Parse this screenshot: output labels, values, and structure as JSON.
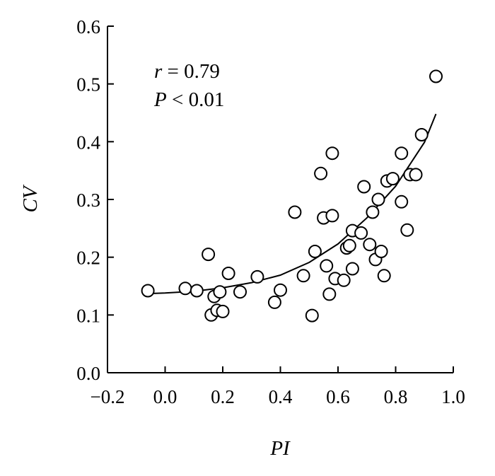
{
  "chart_data": {
    "type": "scatter",
    "xlabel": "PI",
    "ylabel": "CV",
    "xlim": [
      -0.2,
      1.0
    ],
    "ylim": [
      0.0,
      0.6
    ],
    "x_ticks": [
      "−0.2",
      "0.0",
      "0.2",
      "0.4",
      "0.6",
      "0.8",
      "1.0"
    ],
    "x_tick_values": [
      -0.2,
      0.0,
      0.2,
      0.4,
      0.6,
      0.8,
      1.0
    ],
    "y_ticks": [
      "0.0",
      "0.1",
      "0.2",
      "0.3",
      "0.4",
      "0.5",
      "0.6"
    ],
    "y_tick_values": [
      0.0,
      0.1,
      0.2,
      0.3,
      0.4,
      0.5,
      0.6
    ],
    "grid": false,
    "annotation": {
      "r_symbol": "r",
      "r_text": " = 0.79",
      "p_symbol": "P",
      "p_text": " < 0.01"
    },
    "fit_curve": {
      "type": "exponential",
      "x": [
        -0.06,
        0.0,
        0.1,
        0.2,
        0.3,
        0.4,
        0.5,
        0.6,
        0.7,
        0.8,
        0.9,
        0.94
      ],
      "y": [
        0.137,
        0.138,
        0.141,
        0.147,
        0.156,
        0.169,
        0.191,
        0.223,
        0.268,
        0.323,
        0.399,
        0.448
      ]
    },
    "points": [
      {
        "x": -0.06,
        "y": 0.142
      },
      {
        "x": 0.07,
        "y": 0.146
      },
      {
        "x": 0.11,
        "y": 0.142
      },
      {
        "x": 0.15,
        "y": 0.205
      },
      {
        "x": 0.16,
        "y": 0.1
      },
      {
        "x": 0.17,
        "y": 0.132
      },
      {
        "x": 0.18,
        "y": 0.108
      },
      {
        "x": 0.19,
        "y": 0.14
      },
      {
        "x": 0.2,
        "y": 0.106
      },
      {
        "x": 0.22,
        "y": 0.172
      },
      {
        "x": 0.26,
        "y": 0.14
      },
      {
        "x": 0.32,
        "y": 0.166
      },
      {
        "x": 0.38,
        "y": 0.122
      },
      {
        "x": 0.4,
        "y": 0.143
      },
      {
        "x": 0.45,
        "y": 0.278
      },
      {
        "x": 0.48,
        "y": 0.168
      },
      {
        "x": 0.51,
        "y": 0.099
      },
      {
        "x": 0.52,
        "y": 0.21
      },
      {
        "x": 0.54,
        "y": 0.345
      },
      {
        "x": 0.55,
        "y": 0.268
      },
      {
        "x": 0.56,
        "y": 0.185
      },
      {
        "x": 0.57,
        "y": 0.136
      },
      {
        "x": 0.58,
        "y": 0.38
      },
      {
        "x": 0.58,
        "y": 0.272
      },
      {
        "x": 0.59,
        "y": 0.163
      },
      {
        "x": 0.62,
        "y": 0.16
      },
      {
        "x": 0.63,
        "y": 0.216
      },
      {
        "x": 0.64,
        "y": 0.22
      },
      {
        "x": 0.65,
        "y": 0.18
      },
      {
        "x": 0.65,
        "y": 0.246
      },
      {
        "x": 0.68,
        "y": 0.242
      },
      {
        "x": 0.69,
        "y": 0.322
      },
      {
        "x": 0.71,
        "y": 0.222
      },
      {
        "x": 0.72,
        "y": 0.278
      },
      {
        "x": 0.73,
        "y": 0.196
      },
      {
        "x": 0.74,
        "y": 0.3
      },
      {
        "x": 0.75,
        "y": 0.21
      },
      {
        "x": 0.76,
        "y": 0.168
      },
      {
        "x": 0.77,
        "y": 0.332
      },
      {
        "x": 0.79,
        "y": 0.336
      },
      {
        "x": 0.82,
        "y": 0.38
      },
      {
        "x": 0.82,
        "y": 0.296
      },
      {
        "x": 0.84,
        "y": 0.247
      },
      {
        "x": 0.85,
        "y": 0.343
      },
      {
        "x": 0.87,
        "y": 0.343
      },
      {
        "x": 0.89,
        "y": 0.412
      },
      {
        "x": 0.94,
        "y": 0.513
      }
    ]
  }
}
